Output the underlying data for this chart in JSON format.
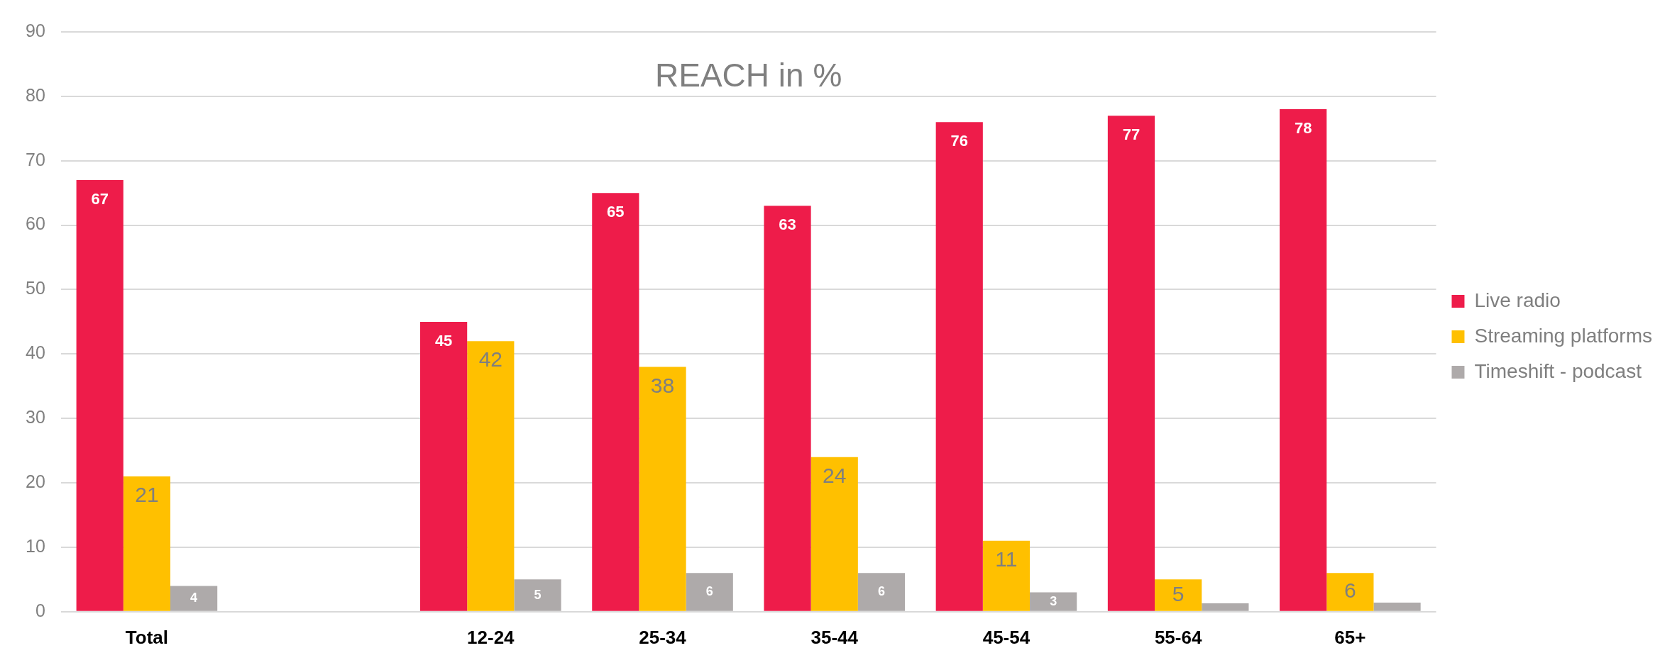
{
  "chart_data": {
    "type": "bar",
    "title": "REACH in %",
    "categories": [
      "Total",
      null,
      "12-24",
      "25-34",
      "35-44",
      "45-54",
      "55-64",
      "65+"
    ],
    "series": [
      {
        "name": "Live radio",
        "color": "#ee1c4a",
        "values": [
          67,
          null,
          45,
          65,
          63,
          76,
          77,
          78
        ],
        "value_labels": [
          "67",
          null,
          "45",
          "65",
          "63",
          "76",
          "77",
          "78"
        ]
      },
      {
        "name": "Streaming platforms",
        "color": "#ffc000",
        "values": [
          21,
          null,
          42,
          38,
          24,
          11,
          5,
          6
        ],
        "value_labels": [
          "21",
          null,
          "42",
          "38",
          "24",
          "11",
          "5",
          "6"
        ]
      },
      {
        "name": "Timeshift - podcast",
        "color": "#aeaaaa",
        "values": [
          4,
          null,
          5,
          6,
          6,
          3,
          1.3,
          1.4
        ],
        "value_labels": [
          "4",
          null,
          "5",
          "6",
          "6",
          "3",
          null,
          null
        ]
      }
    ],
    "ylim": [
      0,
      90
    ],
    "yticks": [
      0,
      10,
      20,
      30,
      40,
      50,
      60,
      70,
      80,
      90
    ],
    "grid": "y",
    "legend": "right"
  }
}
